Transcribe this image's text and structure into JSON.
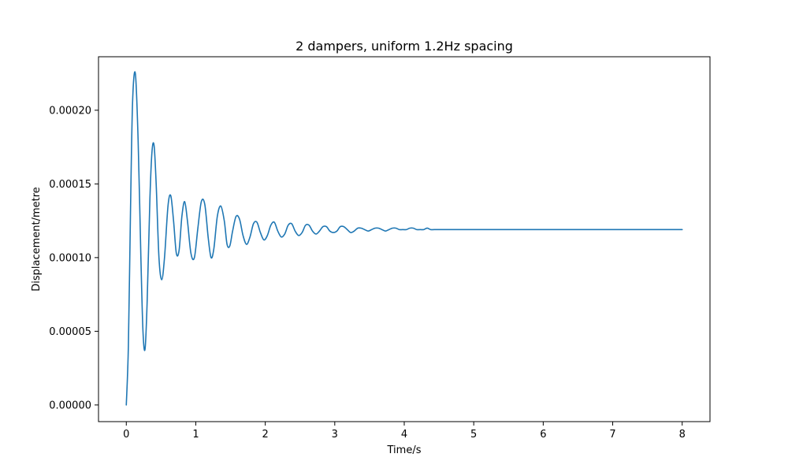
{
  "chart_data": {
    "type": "line",
    "title": "2 dampers, uniform 1.2Hz spacing",
    "xlabel": "Time/s",
    "ylabel": "Displacement/metre",
    "xlim": [
      -0.4,
      8.4
    ],
    "ylim": [
      -1.13e-05,
      0.0002363
    ],
    "xticks": [
      0,
      1,
      2,
      3,
      4,
      5,
      6,
      7,
      8
    ],
    "xtick_labels": [
      "0",
      "1",
      "2",
      "3",
      "4",
      "5",
      "6",
      "7",
      "8"
    ],
    "yticks": [
      0,
      5e-05,
      0.0001,
      0.00015,
      0.0002
    ],
    "ytick_labels": [
      "0.00000",
      "0.00005",
      "0.00010",
      "0.00015",
      "0.00020"
    ],
    "grid": false,
    "legend": "none",
    "colors": {
      "line": "#1f77b4",
      "axes": "#000000"
    },
    "series": [
      {
        "x": [
          0.0,
          0.03,
          0.06,
          0.09,
          0.13,
          0.17,
          0.21,
          0.24,
          0.27,
          0.3,
          0.34,
          0.37,
          0.4,
          0.43,
          0.47,
          0.51,
          0.55,
          0.6,
          0.64,
          0.68,
          0.72,
          0.76,
          0.8,
          0.84,
          0.88,
          0.93,
          0.98,
          1.03,
          1.08,
          1.13,
          1.18,
          1.22,
          1.26,
          1.31,
          1.36,
          1.41,
          1.45,
          1.49,
          1.53,
          1.58,
          1.63,
          1.68,
          1.73,
          1.78,
          1.83,
          1.88,
          1.93,
          1.98,
          2.03,
          2.08,
          2.13,
          2.18,
          2.23,
          2.28,
          2.33,
          2.38,
          2.43,
          2.48,
          2.53,
          2.58,
          2.63,
          2.68,
          2.73,
          2.78,
          2.83,
          2.88,
          2.93,
          2.98,
          3.03,
          3.08,
          3.13,
          3.18,
          3.23,
          3.28,
          3.33,
          3.38,
          3.43,
          3.48,
          3.53,
          3.58,
          3.63,
          3.68,
          3.73,
          3.78,
          3.83,
          3.88,
          3.93,
          3.98,
          4.03,
          4.08,
          4.13,
          4.18,
          4.23,
          4.28,
          4.33,
          4.38,
          4.43,
          4.48,
          4.53,
          4.58,
          4.63,
          4.68,
          4.73,
          4.78,
          4.83,
          4.88,
          4.93,
          4.98,
          5.03,
          5.08,
          5.13,
          5.18,
          5.23,
          5.28,
          5.33,
          5.38,
          5.43,
          5.48,
          5.53,
          5.58,
          5.63,
          5.68,
          5.73,
          5.78,
          5.83,
          5.88,
          5.93,
          5.98,
          6.5,
          7.0,
          7.5,
          8.0
        ],
        "y": [
          0.0,
          4e-05,
          0.00013,
          0.000205,
          0.000225,
          0.00018,
          0.0001,
          5e-05,
          3.8e-05,
          7e-05,
          0.00014,
          0.000172,
          0.000176,
          0.00015,
          0.0001,
          8.5e-05,
          0.0001,
          0.000135,
          0.000142,
          0.000125,
          0.000103,
          0.000105,
          0.000128,
          0.000138,
          0.000125,
          0.000103,
          0.0001,
          0.00012,
          0.000138,
          0.000136,
          0.000113,
          0.0001,
          0.000106,
          0.000128,
          0.000135,
          0.000125,
          0.000109,
          0.000108,
          0.000118,
          0.000128,
          0.000126,
          0.000115,
          0.000109,
          0.000114,
          0.000123,
          0.000124,
          0.000117,
          0.000112,
          0.000115,
          0.000122,
          0.000124,
          0.000118,
          0.000114,
          0.000116,
          0.000122,
          0.000123,
          0.000118,
          0.000115,
          0.000117,
          0.000122,
          0.000122,
          0.000118,
          0.000116,
          0.000118,
          0.000121,
          0.000121,
          0.000118,
          0.000117,
          0.000118,
          0.000121,
          0.000121,
          0.000119,
          0.000117,
          0.000118,
          0.00012,
          0.00012,
          0.000119,
          0.000118,
          0.000119,
          0.00012,
          0.00012,
          0.000119,
          0.000118,
          0.000119,
          0.00012,
          0.00012,
          0.000119,
          0.000119,
          0.000119,
          0.00012,
          0.00012,
          0.000119,
          0.000119,
          0.000119,
          0.00012,
          0.000119,
          0.000119,
          0.000119,
          0.000119,
          0.000119,
          0.000119,
          0.000119,
          0.000119,
          0.000119,
          0.000119,
          0.000119,
          0.000119,
          0.000119,
          0.000119,
          0.000119,
          0.000119,
          0.000119,
          0.000119,
          0.000119,
          0.000119,
          0.000119,
          0.000119,
          0.000119,
          0.000119,
          0.000119,
          0.000119,
          0.000119,
          0.000119,
          0.000119,
          0.000119,
          0.000119,
          0.000119,
          0.000119,
          0.000119,
          0.000119,
          0.000119,
          0.000119
        ]
      }
    ]
  }
}
